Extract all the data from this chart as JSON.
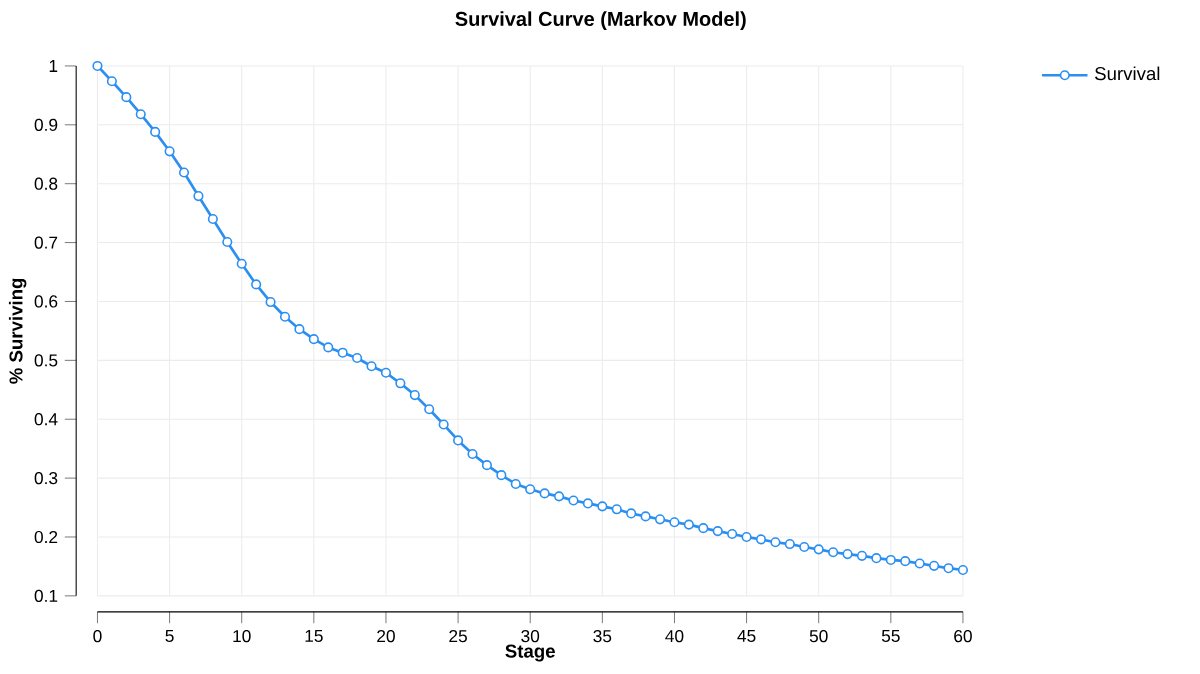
{
  "chart_data": {
    "type": "line",
    "title": "Survival Curve (Markov Model)",
    "xlabel": "Stage",
    "ylabel": "% Surviving",
    "x": [
      0,
      1,
      2,
      3,
      4,
      5,
      6,
      7,
      8,
      9,
      10,
      11,
      12,
      13,
      14,
      15,
      16,
      17,
      18,
      19,
      20,
      21,
      22,
      23,
      24,
      25,
      26,
      27,
      28,
      29,
      30,
      31,
      32,
      33,
      34,
      35,
      36,
      37,
      38,
      39,
      40,
      41,
      42,
      43,
      44,
      45,
      46,
      47,
      48,
      49,
      50,
      51,
      52,
      53,
      54,
      55,
      56,
      57,
      58,
      59,
      60
    ],
    "series": [
      {
        "name": "Survival",
        "color": "#2b8ff2",
        "values": [
          1.0,
          0.974,
          0.947,
          0.918,
          0.888,
          0.855,
          0.819,
          0.779,
          0.74,
          0.701,
          0.664,
          0.629,
          0.599,
          0.574,
          0.553,
          0.536,
          0.522,
          0.513,
          0.504,
          0.49,
          0.479,
          0.461,
          0.441,
          0.417,
          0.391,
          0.364,
          0.341,
          0.322,
          0.305,
          0.29,
          0.281,
          0.274,
          0.269,
          0.262,
          0.257,
          0.252,
          0.247,
          0.24,
          0.235,
          0.23,
          0.225,
          0.221,
          0.215,
          0.21,
          0.205,
          0.2,
          0.196,
          0.191,
          0.188,
          0.183,
          0.179,
          0.174,
          0.171,
          0.168,
          0.164,
          0.161,
          0.159,
          0.155,
          0.151,
          0.147,
          0.144
        ]
      }
    ],
    "xlim": [
      0,
      60
    ],
    "ylim": [
      0.1,
      1
    ],
    "xticks": [
      0,
      5,
      10,
      15,
      20,
      25,
      30,
      35,
      40,
      45,
      50,
      55,
      60
    ],
    "yticks": [
      0.1,
      0.2,
      0.3,
      0.4,
      0.5,
      0.6,
      0.7,
      0.8,
      0.9,
      1
    ],
    "grid": true,
    "legend": "top right",
    "marker": "circle",
    "line_style": "solid"
  }
}
